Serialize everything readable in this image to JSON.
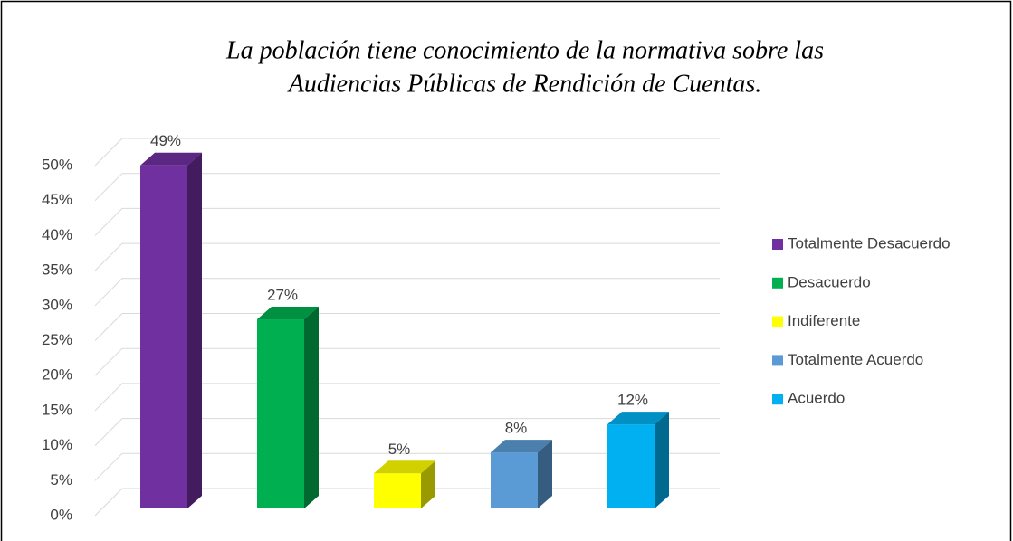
{
  "chart_data": {
    "type": "bar3d",
    "title": "La población tiene conocimiento de la normativa sobre las",
    "subtitle": "Audiencias Públicas de Rendición de Cuentas.",
    "categories": [
      "Totalmente Desacuerdo",
      "Desacuerdo",
      "Indiferente",
      "Totalmente Acuerdo",
      "Acuerdo"
    ],
    "values": [
      49,
      27,
      5,
      8,
      12
    ],
    "value_labels": [
      "49%",
      "27%",
      "5%",
      "8%",
      "12%"
    ],
    "colors": [
      "#7030a0",
      "#00b050",
      "#ffff00",
      "#5b9bd5",
      "#00b0f0"
    ],
    "ylim": [
      0,
      50
    ],
    "yticks": [
      {
        "value": 0,
        "label": "0%"
      },
      {
        "value": 5,
        "label": "5%"
      },
      {
        "value": 10,
        "label": "10%"
      },
      {
        "value": 15,
        "label": "15%"
      },
      {
        "value": 20,
        "label": "20%"
      },
      {
        "value": 25,
        "label": "25%"
      },
      {
        "value": 30,
        "label": "30%"
      },
      {
        "value": 35,
        "label": "35%"
      },
      {
        "value": 40,
        "label": "40%"
      },
      {
        "value": 45,
        "label": "45%"
      },
      {
        "value": 50,
        "label": "50%"
      }
    ],
    "grid": true,
    "legend": "right"
  }
}
